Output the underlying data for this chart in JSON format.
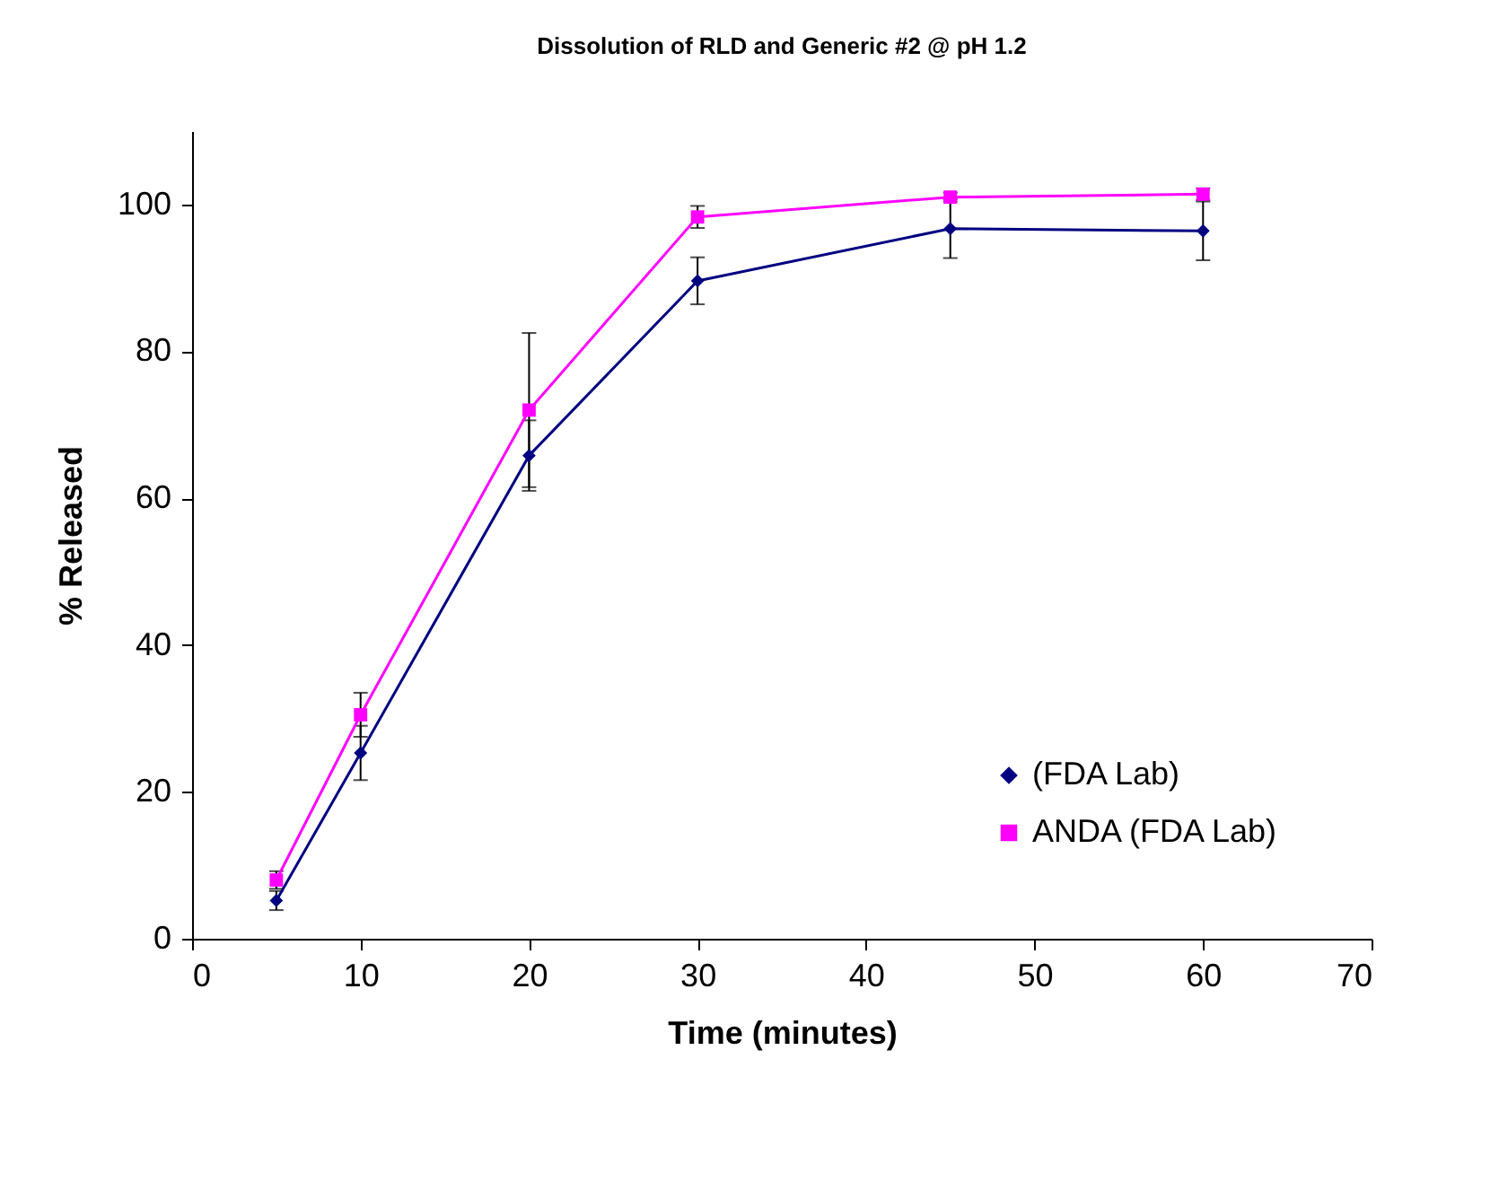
{
  "chart_data": {
    "type": "line",
    "title": "Dissolution of RLD and Generic #2 @ pH 1.2",
    "xlabel": "Time (minutes)",
    "ylabel": "% Released",
    "x": [
      5,
      10,
      20,
      30,
      45,
      60
    ],
    "series": [
      {
        "name": "(FDA Lab)",
        "color": "#000080",
        "marker": "diamond",
        "values": [
          5.2,
          25.3,
          65.8,
          89.6,
          96.7,
          96.4
        ],
        "errors": [
          1.3,
          3.7,
          4.8,
          3.2,
          4.0,
          4.0
        ]
      },
      {
        "name": "ANDA (FDA Lab)",
        "color": "#ff00ff",
        "marker": "square",
        "values": [
          8.0,
          30.5,
          72.0,
          98.3,
          101.0,
          101.4
        ],
        "errors": [
          1.2,
          3.0,
          10.5,
          1.5,
          0.6,
          0.8
        ]
      }
    ],
    "xlim": [
      0,
      70
    ],
    "xticks": [
      0,
      10,
      20,
      30,
      40,
      50,
      60,
      70
    ],
    "ylim": [
      0,
      110
    ],
    "yticks": [
      0,
      20,
      40,
      60,
      80,
      100
    ],
    "grid": false,
    "legend": "bottom right",
    "line_style": "solid"
  }
}
